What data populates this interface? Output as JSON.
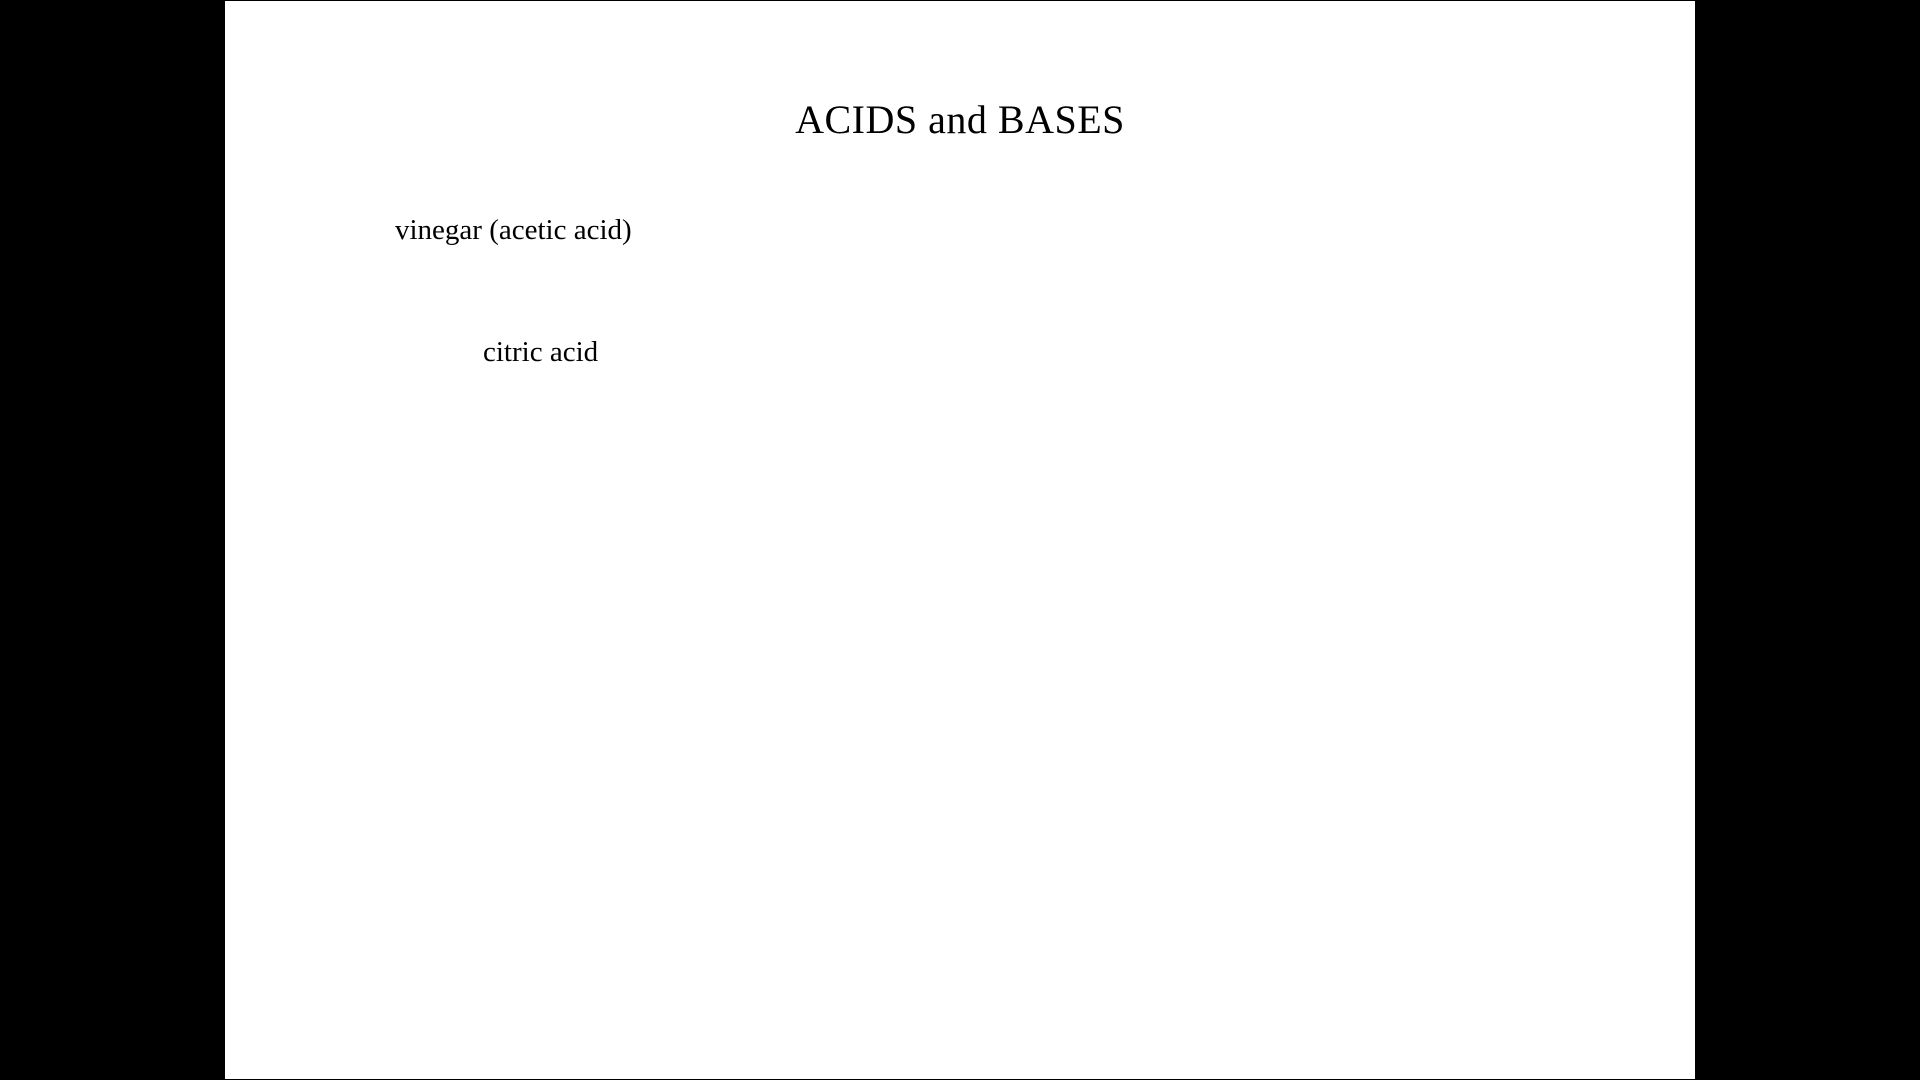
{
  "slide": {
    "title": "ACIDS and BASES",
    "items": [
      "vinegar (acetic acid)",
      "citric acid"
    ],
    "background_color": "#ffffff",
    "letterbox_color": "#000000",
    "text_color": "#000000",
    "title_fontsize": 40,
    "body_fontsize": 29,
    "font_family": "Times New Roman"
  }
}
